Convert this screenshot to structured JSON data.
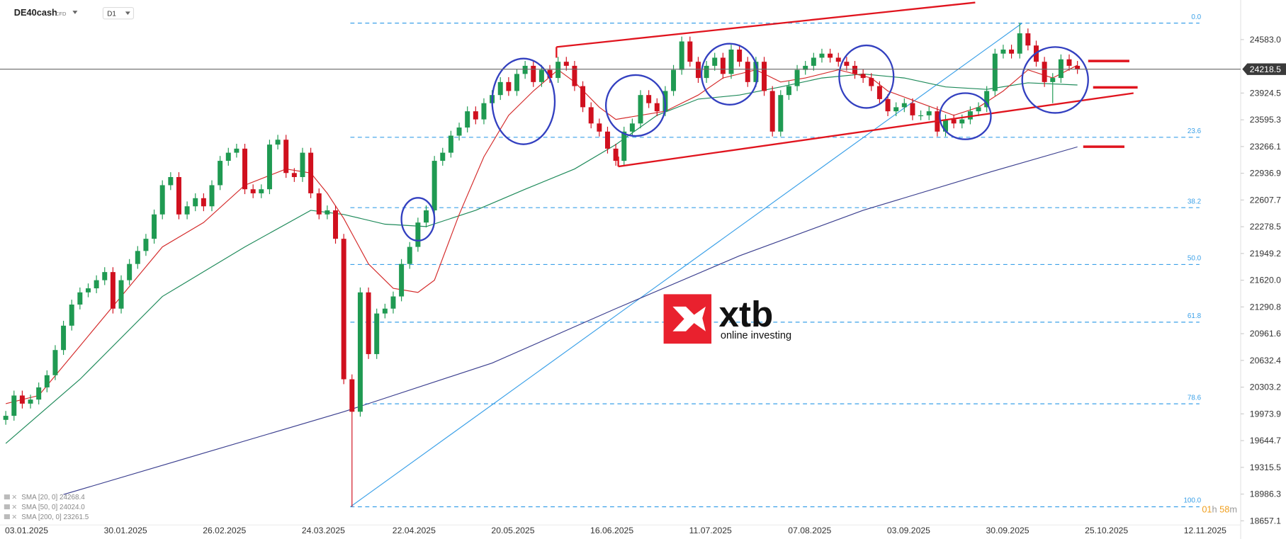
{
  "header": {
    "symbol": "DE40cash",
    "instrument_type": "CFD",
    "timeframe": "D1"
  },
  "chart_data": {
    "type": "candlestick",
    "open": [
      19900,
      19950,
      20200,
      20100,
      20150,
      20300,
      20450,
      20760,
      21060,
      21320,
      21470,
      21520,
      21620,
      21720,
      21270,
      21620,
      21820,
      21980,
      22130,
      22430,
      22790,
      22890,
      22430,
      22530,
      22630,
      22530,
      22790,
      23090,
      23190,
      23240,
      22740,
      22690,
      22740,
      23290,
      23350,
      22940,
      22890,
      23190,
      22690,
      22430,
      22480,
      22130,
      20400,
      20000,
      21470,
      20710,
      21210,
      21270,
      21420,
      21820,
      22030,
      22330,
      22480,
      23090,
      23190,
      23400,
      23500,
      23700,
      23600,
      23800,
      23900,
      24060,
      23950,
      24160,
      24260,
      24060,
      24210,
      24110,
      24310,
      24260,
      24010,
      23750,
      23550,
      23450,
      23240,
      23090,
      23450,
      23550,
      23900,
      23800,
      23700,
      23950,
      24210,
      24560,
      24310,
      24110,
      24260,
      24360,
      24160,
      24460,
      24310,
      24060,
      24310,
      23950,
      23450,
      23900,
      24010,
      24210,
      24260,
      24360,
      24410,
      24360,
      24310,
      24260,
      24160,
      24110,
      24010,
      23850,
      23700,
      23750,
      23800,
      23650,
      23650,
      23700,
      23450,
      23600,
      23550,
      23600,
      23700,
      23750,
      23950,
      24410,
      24460,
      24410,
      24660,
      24510,
      24310,
      24060,
      24110,
      24340,
      24260
    ],
    "high": [
      20010,
      20260,
      20260,
      20210,
      20360,
      20510,
      20820,
      21120,
      21380,
      21530,
      21580,
      21680,
      21780,
      21780,
      21680,
      21880,
      22040,
      22190,
      22490,
      22850,
      22950,
      22950,
      22590,
      22690,
      22690,
      22850,
      23150,
      23250,
      23300,
      23300,
      22800,
      22800,
      23350,
      23410,
      23410,
      23000,
      23250,
      23250,
      22750,
      22540,
      22540,
      22190,
      20460,
      21530,
      21530,
      21270,
      21330,
      21480,
      21880,
      22090,
      22390,
      22540,
      23150,
      23250,
      23460,
      23560,
      23760,
      23760,
      23860,
      23960,
      24120,
      24120,
      24220,
      24320,
      24320,
      24270,
      24270,
      24370,
      24370,
      24320,
      24070,
      23810,
      23610,
      23510,
      23300,
      23510,
      23610,
      23960,
      23960,
      23860,
      24010,
      24270,
      24620,
      24620,
      24370,
      24320,
      24420,
      24420,
      24520,
      24520,
      24370,
      24370,
      24370,
      24010,
      23960,
      24070,
      24270,
      24320,
      24420,
      24470,
      24470,
      24420,
      24370,
      24320,
      24220,
      24170,
      24070,
      23910,
      23810,
      23860,
      23860,
      23710,
      23760,
      23760,
      23660,
      23660,
      23660,
      23760,
      23810,
      24010,
      24470,
      24520,
      24520,
      24790,
      24720,
      24570,
      24370,
      24170,
      24400,
      24400,
      24320
    ],
    "low": [
      19840,
      19890,
      20040,
      20040,
      20090,
      20240,
      20390,
      20700,
      21000,
      21260,
      21410,
      21460,
      21560,
      21210,
      21210,
      21560,
      21760,
      21920,
      22070,
      22370,
      22730,
      22370,
      22370,
      22470,
      22470,
      22470,
      22730,
      23030,
      23130,
      22680,
      22630,
      22630,
      22680,
      23230,
      22880,
      22830,
      22830,
      22630,
      22370,
      22370,
      22070,
      20340,
      18830,
      19940,
      20650,
      20650,
      21150,
      21210,
      21360,
      21760,
      21970,
      22270,
      22420,
      23030,
      23130,
      23340,
      23440,
      23540,
      23540,
      23740,
      23840,
      23890,
      23890,
      24100,
      24000,
      24000,
      24050,
      24050,
      24200,
      23950,
      23690,
      23490,
      23390,
      23180,
      23030,
      23030,
      23390,
      23490,
      23740,
      23640,
      23640,
      23890,
      24150,
      24250,
      24050,
      24050,
      24200,
      24100,
      24100,
      24250,
      24000,
      24000,
      23890,
      23390,
      23390,
      23840,
      23950,
      24150,
      24200,
      24300,
      24300,
      24250,
      24200,
      24100,
      24050,
      23950,
      23790,
      23640,
      23640,
      23690,
      23590,
      23590,
      23590,
      23390,
      23390,
      23490,
      23490,
      23540,
      23640,
      23690,
      23890,
      24350,
      24350,
      24350,
      24450,
      24250,
      24000,
      23800,
      24050,
      24200,
      24160
    ],
    "close": [
      19950,
      20200,
      20100,
      20150,
      20300,
      20450,
      20760,
      21060,
      21320,
      21470,
      21520,
      21620,
      21720,
      21270,
      21620,
      21820,
      21980,
      22130,
      22430,
      22790,
      22890,
      22430,
      22530,
      22630,
      22530,
      22790,
      23090,
      23190,
      23240,
      22740,
      22690,
      22740,
      23290,
      23350,
      22940,
      22890,
      23190,
      22690,
      22430,
      22480,
      22130,
      20400,
      20000,
      21470,
      20710,
      21210,
      21270,
      21420,
      21820,
      22030,
      22330,
      22480,
      23090,
      23190,
      23400,
      23500,
      23700,
      23600,
      23800,
      23900,
      24060,
      23950,
      24160,
      24260,
      24060,
      24210,
      24110,
      24310,
      24260,
      24010,
      23750,
      23550,
      23450,
      23240,
      23090,
      23450,
      23550,
      23900,
      23800,
      23700,
      23950,
      24210,
      24560,
      24310,
      24110,
      24260,
      24360,
      24160,
      24460,
      24310,
      24060,
      24310,
      23950,
      23450,
      23900,
      24010,
      24210,
      24260,
      24360,
      24410,
      24360,
      24310,
      24260,
      24160,
      24110,
      24010,
      23850,
      23700,
      23750,
      23800,
      23650,
      23650,
      23700,
      23450,
      23600,
      23550,
      23600,
      23700,
      23750,
      23950,
      24410,
      24460,
      24410,
      24660,
      24510,
      24310,
      24060,
      24110,
      24340,
      24260,
      24218.5
    ],
    "colors": {
      "up": "#1f9a52",
      "down": "#d0101e"
    },
    "xlim": [
      -0.7,
      149.6
    ],
    "xticks": [
      {
        "value": 0,
        "label": "03.01.2025"
      },
      {
        "value": 12,
        "label": "30.01.2025"
      },
      {
        "value": 24,
        "label": "26.02.2025"
      },
      {
        "value": 36,
        "label": "24.03.2025"
      },
      {
        "value": 47,
        "label": "22.04.2025"
      },
      {
        "value": 59,
        "label": "20.05.2025"
      },
      {
        "value": 71,
        "label": "16.06.2025"
      },
      {
        "value": 83,
        "label": "11.07.2025"
      },
      {
        "value": 95,
        "label": "07.08.2025"
      },
      {
        "value": 107,
        "label": "03.09.2025"
      },
      {
        "value": 119,
        "label": "30.09.2025"
      },
      {
        "value": 131,
        "label": "25.10.2025"
      },
      {
        "value": 143,
        "label": "12.11.2025"
      }
    ],
    "ylim": [
      18606,
      25070
    ],
    "yticks": [
      {
        "value": 24583,
        "label": "24583.0"
      },
      23924.5,
      23595.3,
      23266.1,
      22936.9,
      22607.7,
      22278.5,
      21949.2,
      {
        "value": 21620,
        "label": "21620.0"
      },
      21290.8,
      20961.6,
      20632.4,
      20303.2,
      19973.9,
      19644.7,
      19315.5,
      18986.3,
      18657.1
    ],
    "last_price": 24218.5,
    "indicators": [
      {
        "name": "SMA [200, 0] 23261.5",
        "color": "#3b3f8f",
        "x": [
          7,
          41,
          59,
          74,
          89,
          104,
          119,
          130
        ],
        "values": [
          18980,
          20000,
          20600,
          21270,
          21920,
          22480,
          22940,
          23261.5
        ]
      },
      {
        "name": "SMA [50, 0] 24024.0",
        "color": "#1e8a5a",
        "x": [
          0,
          9,
          19,
          29,
          37,
          41,
          46,
          51,
          57,
          63,
          69,
          74,
          79,
          84,
          89,
          94,
          99,
          104,
          109,
          114,
          119,
          124,
          130
        ],
        "values": [
          19610,
          20400,
          21420,
          22030,
          22480,
          22430,
          22310,
          22280,
          22480,
          22740,
          22990,
          23290,
          23650,
          23850,
          23900,
          24000,
          24110,
          24160,
          24110,
          24000,
          23970,
          24050,
          24024
        ]
      },
      {
        "name": "SMA [20, 0] 24268.4",
        "color": "#d42a2a",
        "x": [
          0,
          4,
          9,
          14,
          19,
          24,
          29,
          34,
          37,
          39,
          41,
          44,
          47,
          50,
          52,
          55,
          58,
          61,
          64,
          67,
          69,
          72,
          74,
          77,
          80,
          84,
          87,
          91,
          94,
          97,
          101,
          105,
          107,
          111,
          115,
          118,
          121,
          124,
          127,
          130
        ],
        "values": [
          20100,
          20200,
          20810,
          21420,
          22030,
          22330,
          22790,
          22990,
          22940,
          22690,
          22380,
          21820,
          21520,
          21470,
          21620,
          22430,
          23140,
          23650,
          23950,
          24210,
          24060,
          23750,
          23600,
          23650,
          23700,
          23900,
          24110,
          24210,
          24060,
          24110,
          24210,
          24110,
          23950,
          23800,
          23650,
          23750,
          23950,
          24210,
          24110,
          24268.4
        ]
      }
    ],
    "fib_levels": [
      {
        "value": 24786,
        "label": "0.0"
      },
      {
        "value": 23380,
        "label": "23.6"
      },
      {
        "value": 22513,
        "label": "38.2"
      },
      {
        "value": 21813,
        "label": "50.0"
      },
      {
        "value": 21103,
        "label": "61.8"
      },
      {
        "value": 20098,
        "label": "78.6"
      },
      {
        "value": 18830,
        "label": "100.0"
      }
    ]
  },
  "watermark": {
    "brand": "xtb",
    "tagline": "online investing"
  },
  "countdown": [
    "01",
    "h",
    "58",
    "m"
  ]
}
